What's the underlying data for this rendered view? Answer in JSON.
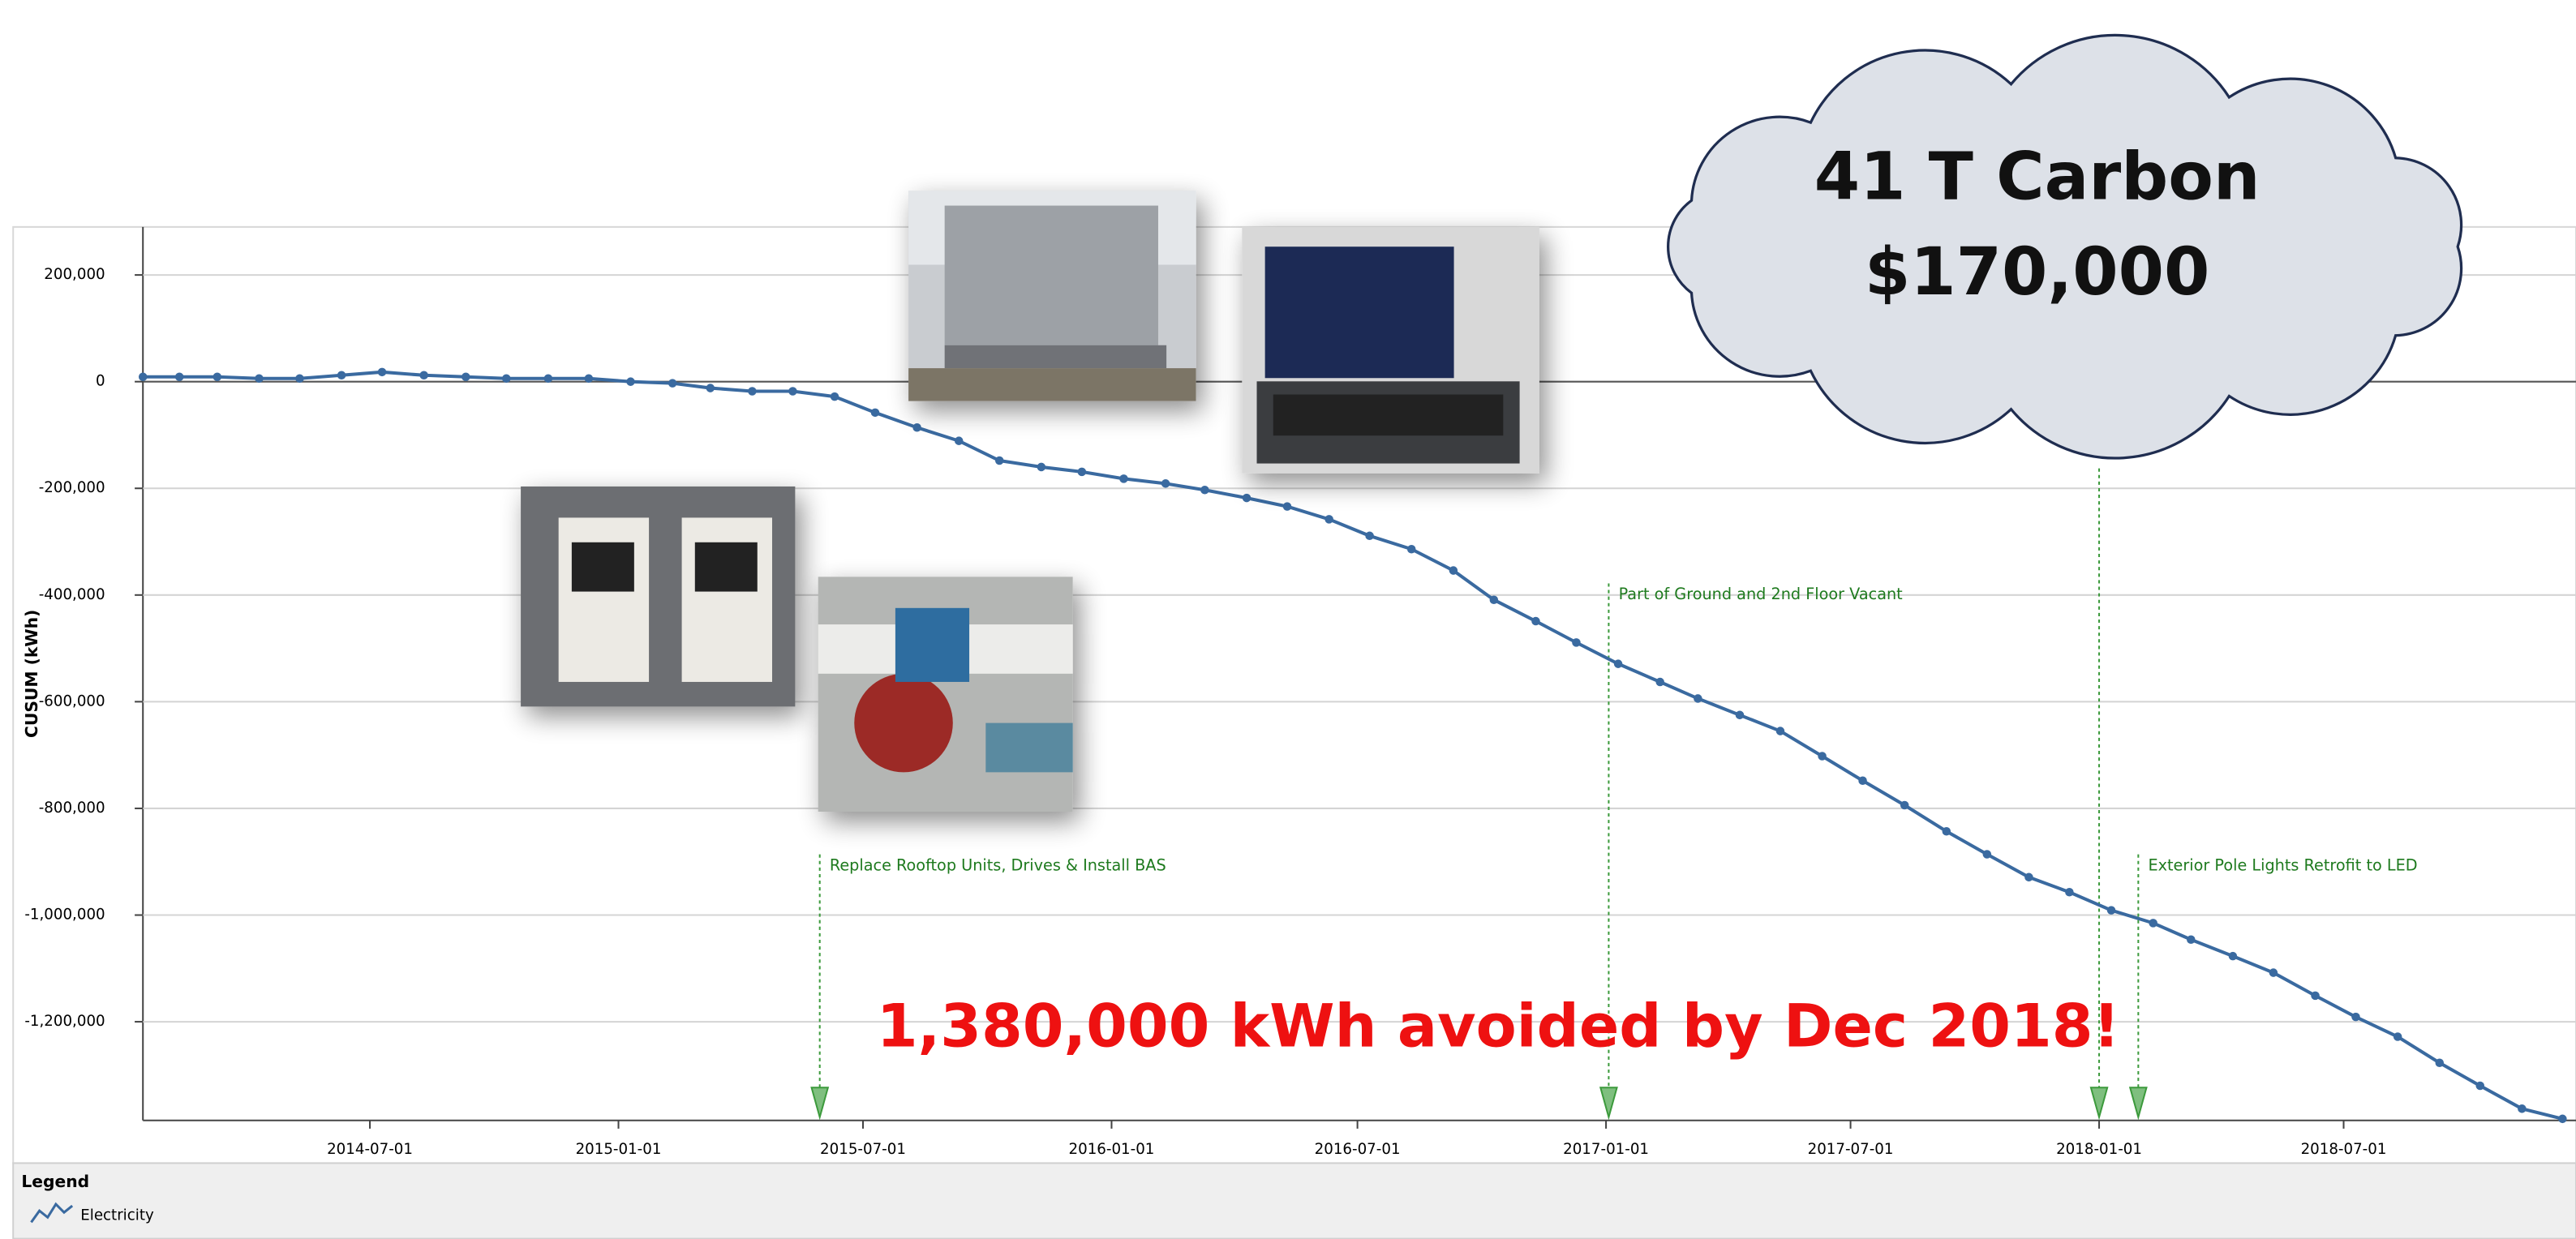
{
  "chart_data": {
    "type": "line",
    "y_label": "CUSUM (kWh)",
    "x": [
      "2014-01-14",
      "2014-02-10",
      "2014-03-10",
      "2014-04-10",
      "2014-05-10",
      "2014-06-10",
      "2014-07-10",
      "2014-08-10",
      "2014-09-10",
      "2014-10-10",
      "2014-11-10",
      "2014-12-10",
      "2015-01-10",
      "2015-02-10",
      "2015-03-10",
      "2015-04-10",
      "2015-05-10",
      "2015-06-10",
      "2015-07-10",
      "2015-08-10",
      "2015-09-10",
      "2015-10-10",
      "2015-11-10",
      "2015-12-10",
      "2016-01-10",
      "2016-02-10",
      "2016-03-10",
      "2016-04-10",
      "2016-05-10",
      "2016-06-10",
      "2016-07-10",
      "2016-08-10",
      "2016-09-10",
      "2016-10-10",
      "2016-11-10",
      "2016-12-10",
      "2017-01-10",
      "2017-02-10",
      "2017-03-10",
      "2017-04-10",
      "2017-05-10",
      "2017-06-10",
      "2017-07-10",
      "2017-08-10",
      "2017-09-10",
      "2017-10-10",
      "2017-11-10",
      "2017-12-10",
      "2018-01-10",
      "2018-02-10",
      "2018-03-10",
      "2018-04-10",
      "2018-05-10",
      "2018-06-10",
      "2018-07-10",
      "2018-08-10",
      "2018-09-10",
      "2018-10-10",
      "2018-11-10",
      "2018-12-10"
    ],
    "series": [
      {
        "name": "Electricity",
        "color": "#3a6aa0",
        "values": [
          9000,
          9000,
          9000,
          6000,
          6000,
          12000,
          18000,
          12000,
          9000,
          6000,
          6000,
          6000,
          0,
          -3000,
          -12000,
          -18000,
          -18000,
          -28000,
          -58000,
          -86000,
          -111000,
          -148000,
          -160000,
          -169000,
          -182000,
          -191000,
          -203000,
          -218000,
          -234000,
          -258000,
          -289000,
          -314000,
          -354000,
          -409000,
          -449000,
          -489000,
          -529000,
          -563000,
          -594000,
          -625000,
          -655000,
          -702000,
          -748000,
          -794000,
          -843000,
          -886000,
          -929000,
          -957000,
          -991000,
          -1015000,
          -1046000,
          -1077000,
          -1108000,
          -1151000,
          -1191000,
          -1228000,
          -1277000,
          -1320000,
          -1363000,
          -1382000
        ]
      }
    ],
    "xlim": [
      "2014-01-14",
      "2018-12-20"
    ],
    "xticks": [
      "2014-07-01",
      "2015-01-01",
      "2015-07-01",
      "2016-01-01",
      "2016-07-01",
      "2017-01-01",
      "2017-07-01",
      "2018-01-01",
      "2018-07-01"
    ],
    "ylim": [
      -1385000,
      290000
    ],
    "yticks": [
      {
        "value": 200000,
        "label": "200,000"
      },
      0,
      {
        "value": -200000,
        "label": "-200,000"
      },
      {
        "value": -400000,
        "label": "-400,000"
      },
      {
        "value": -600000,
        "label": "-600,000"
      },
      {
        "value": -800000,
        "label": "-800,000"
      },
      {
        "value": -1000000,
        "label": "-1,000,000"
      },
      {
        "value": -1200000,
        "label": "-1,200,000"
      }
    ],
    "grid": true,
    "events": [
      {
        "date": "2015-05-30",
        "label": "Replace Rooftop Units, Drives & Install BAS"
      },
      {
        "date": "2017-01-03",
        "label": "Part of Ground and 2nd Floor Vacant"
      },
      {
        "date": "2018-01-01",
        "label": null
      },
      {
        "date": "2018-01-30",
        "label": "Exterior Pole Lights Retrofit to LED"
      }
    ],
    "callout": [
      "41 T Carbon",
      "$170,000"
    ],
    "headline": "1,380,000 kWh avoided by Dec 2018!",
    "legend_title": "Legend"
  }
}
